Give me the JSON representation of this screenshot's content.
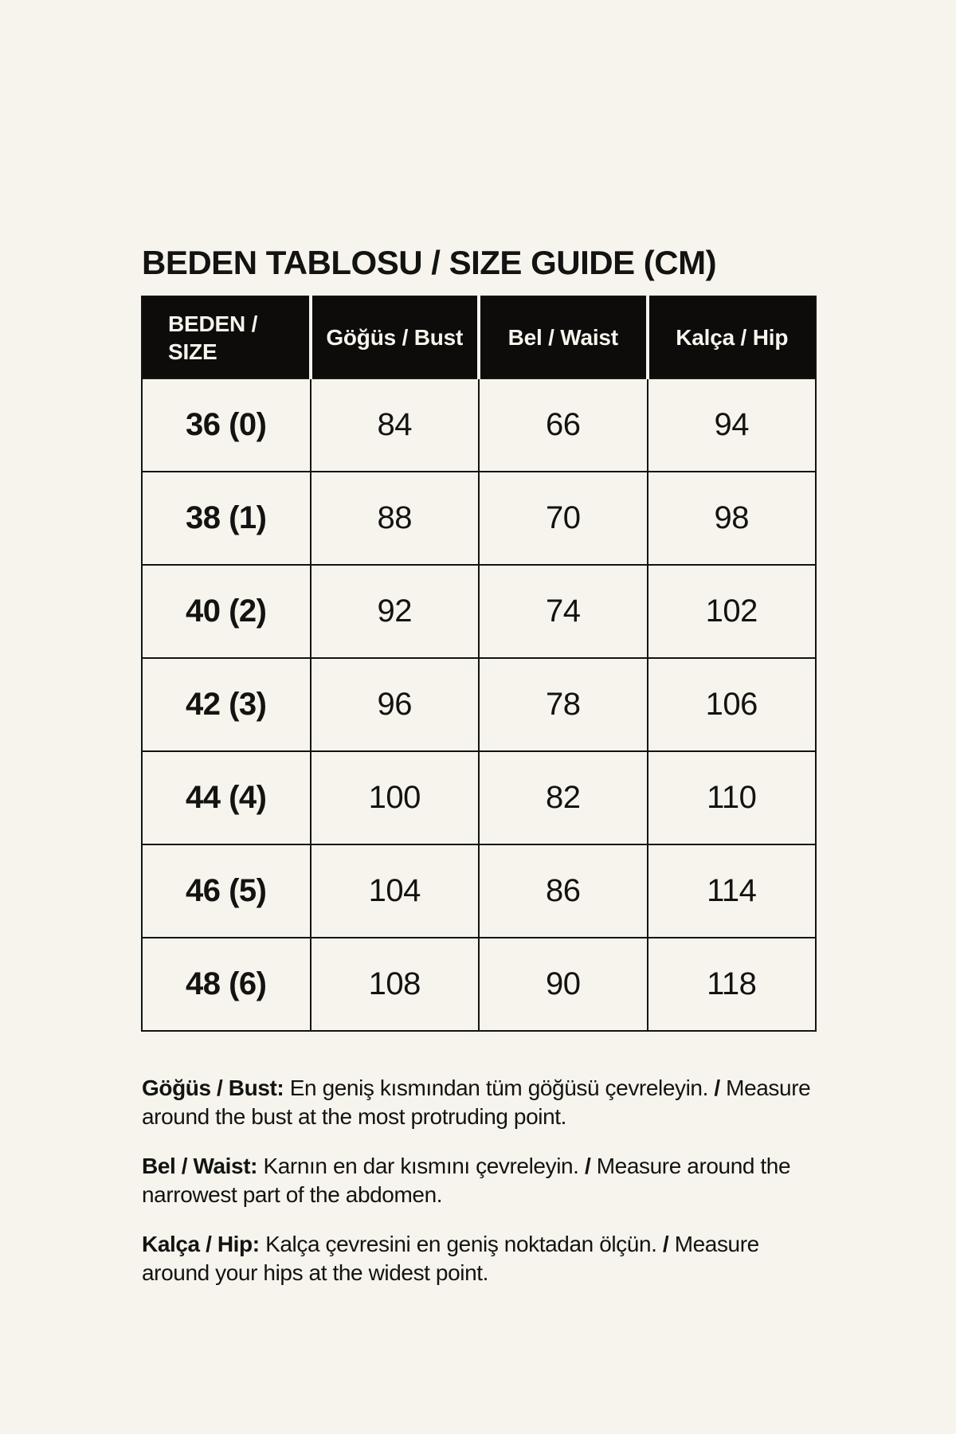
{
  "page": {
    "background_color": "#F6F4ED",
    "text_color": "#131311"
  },
  "title": "BEDEN TABLOSU / SIZE GUIDE (CM)",
  "size_table": {
    "header_bg_color": "#0D0C0A",
    "header_text_color": "#F6F4ED",
    "columns": [
      "BEDEN / SIZE",
      "Göğüs / Bust",
      "Bel / Waist",
      "Kalça / Hip"
    ],
    "rows": [
      {
        "size": "36 (0)",
        "bust": "84",
        "waist": "66",
        "hip": "94"
      },
      {
        "size": "38 (1)",
        "bust": "88",
        "waist": "70",
        "hip": "98"
      },
      {
        "size": "40 (2)",
        "bust": "92",
        "waist": "74",
        "hip": "102"
      },
      {
        "size": "42 (3)",
        "bust": "96",
        "waist": "78",
        "hip": "106"
      },
      {
        "size": "44 (4)",
        "bust": "100",
        "waist": "82",
        "hip": "110"
      },
      {
        "size": "46 (5)",
        "bust": "104",
        "waist": "86",
        "hip": "114"
      },
      {
        "size": "48 (6)",
        "bust": "108",
        "waist": "90",
        "hip": "118"
      }
    ]
  },
  "notes": [
    {
      "label": "Göğüs / Bust:",
      "turkish": "En geniş kısmından tüm göğüsü çevreleyin.",
      "slash": "/",
      "english": "Measure around the bust at the most protruding point."
    },
    {
      "label": "Bel / Waist:",
      "turkish": "Karnın en dar kısmını çevreleyin.",
      "slash": "/",
      "english": "Measure around the narrowest part of the abdomen."
    },
    {
      "label": "Kalça / Hip:",
      "turkish": "Kalça çevresini en geniş noktadan ölçün.",
      "slash": "/",
      "english": "Measure around your hips at the widest point."
    }
  ]
}
